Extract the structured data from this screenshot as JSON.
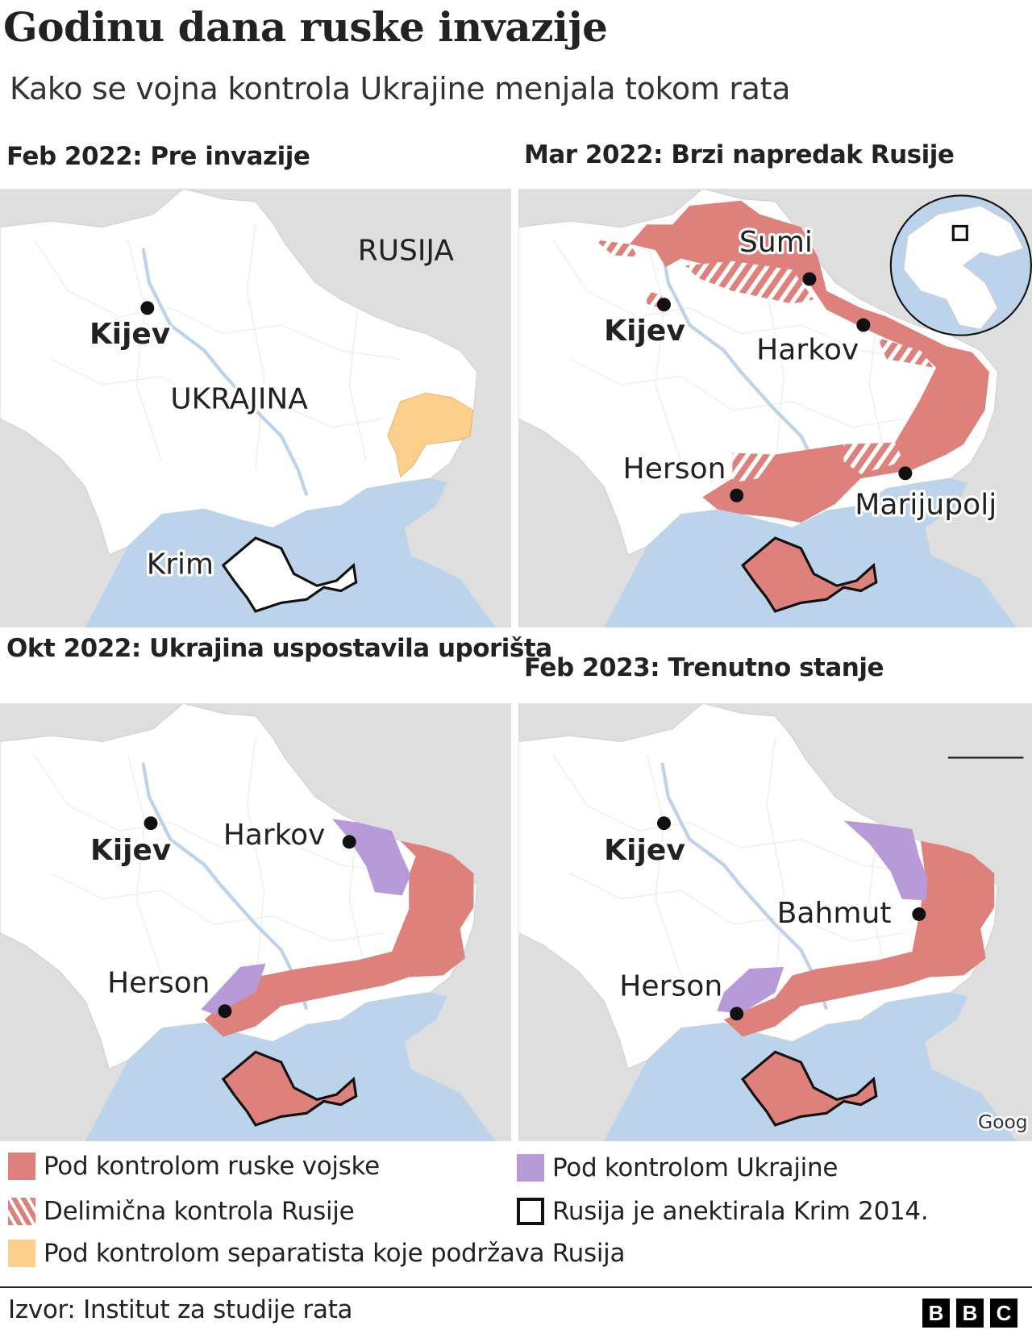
{
  "header": {
    "title": "Godinu dana ruske invazije",
    "subtitle": "Kako se vojna kontrola Ukrajine menjala tokom rata"
  },
  "colors": {
    "russian_control": "#de807c",
    "ukraine_regained": "#b99ad9",
    "separatist": "#fdcf8a",
    "sea": "#bcd3ec",
    "neighbour_land": "#dedede",
    "ukraine_land": "#ffffff"
  },
  "panels": [
    {
      "title": "Feb 2022: Pre invazije",
      "labels": {
        "kyiv": "Kijev",
        "russia": "RUSIJA",
        "ukraine": "UKRAJINA",
        "crimea": "Krim"
      }
    },
    {
      "title": "Mar 2022: Brzi napredak Rusije",
      "labels": {
        "kyiv": "Kijev",
        "sumy": "Sumi",
        "kharkiv": "Harkov",
        "kherson": "Herson",
        "mariupol": "Marijupolj"
      }
    },
    {
      "title": "Okt 2022: Ukrajina uspostavila uporišta",
      "labels": {
        "kyiv": "Kijev",
        "kharkiv": "Harkov",
        "kherson": "Herson"
      }
    },
    {
      "title": "Feb 2023: Trenutno stanje",
      "labels": {
        "kyiv": "Kijev",
        "bakhmut": "Bahmut",
        "kherson": "Herson"
      },
      "attribution": "Goog"
    }
  ],
  "legend": [
    {
      "label": "Pod kontrolom ruske vojske",
      "swatch": "solid-red"
    },
    {
      "label": "Delimična kontrola Rusije",
      "swatch": "hatched-red"
    },
    {
      "label": "Pod kontrolom separatista koje podržava Rusija",
      "swatch": "solid-orange"
    },
    {
      "label": "Pod kontrolom Ukrajine",
      "swatch": "solid-purple"
    },
    {
      "label": "Rusija je anektirala Krim 2014.",
      "swatch": "black-outline"
    }
  ],
  "footer": {
    "source": "Izvor: Institut za studije rata",
    "logo": [
      "B",
      "B",
      "C"
    ]
  }
}
